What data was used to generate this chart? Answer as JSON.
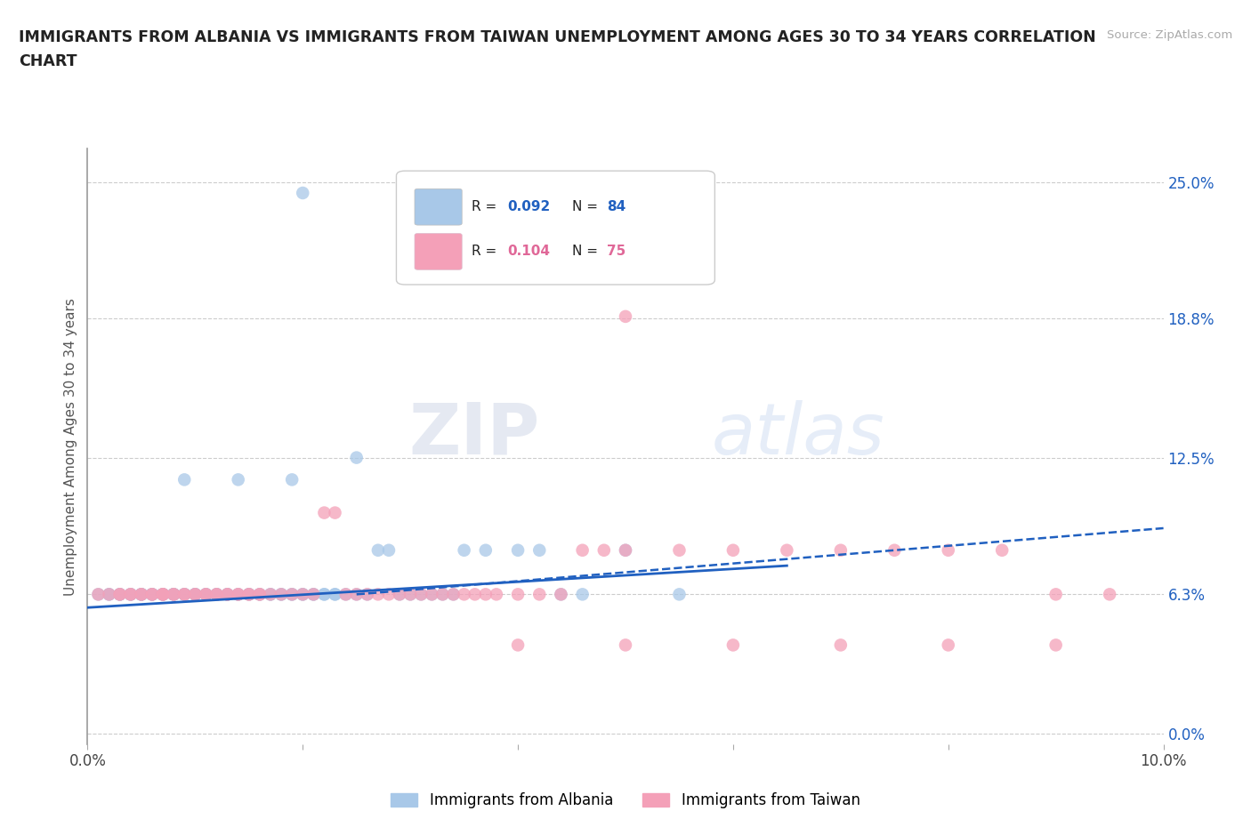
{
  "title_line1": "IMMIGRANTS FROM ALBANIA VS IMMIGRANTS FROM TAIWAN UNEMPLOYMENT AMONG AGES 30 TO 34 YEARS CORRELATION",
  "title_line2": "CHART",
  "source_text": "Source: ZipAtlas.com",
  "ylabel": "Unemployment Among Ages 30 to 34 years",
  "xlim": [
    0.0,
    0.1
  ],
  "ylim": [
    -0.005,
    0.265
  ],
  "albania_R": "0.092",
  "albania_N": "84",
  "taiwan_R": "0.104",
  "taiwan_N": "75",
  "albania_color": "#a8c8e8",
  "taiwan_color": "#f4a0b8",
  "albania_line_color": "#2060c0",
  "taiwan_line_color": "#e06080",
  "legend_albania": "Immigrants from Albania",
  "legend_taiwan": "Immigrants from Taiwan",
  "watermark_zip": "ZIP",
  "watermark_atlas": "atlas",
  "background_color": "#ffffff",
  "y_tick_values": [
    0.0,
    0.063,
    0.125,
    0.188,
    0.25
  ],
  "y_tick_labels": [
    "0.0%",
    "6.3%",
    "12.5%",
    "18.8%",
    "25.0%"
  ],
  "albania_x": [
    0.001,
    0.002,
    0.002,
    0.003,
    0.003,
    0.003,
    0.004,
    0.004,
    0.004,
    0.005,
    0.005,
    0.005,
    0.005,
    0.006,
    0.006,
    0.006,
    0.007,
    0.007,
    0.007,
    0.008,
    0.008,
    0.008,
    0.008,
    0.009,
    0.009,
    0.009,
    0.01,
    0.01,
    0.01,
    0.01,
    0.011,
    0.011,
    0.011,
    0.012,
    0.012,
    0.012,
    0.013,
    0.013,
    0.013,
    0.014,
    0.014,
    0.015,
    0.015,
    0.015,
    0.016,
    0.016,
    0.017,
    0.017,
    0.018,
    0.018,
    0.019,
    0.019,
    0.02,
    0.02,
    0.021,
    0.021,
    0.022,
    0.022,
    0.023,
    0.023,
    0.024,
    0.025,
    0.026,
    0.027,
    0.028,
    0.029,
    0.03,
    0.031,
    0.032,
    0.033,
    0.034,
    0.035,
    0.037,
    0.04,
    0.042,
    0.044,
    0.046,
    0.05,
    0.055,
    0.02,
    0.009,
    0.014,
    0.019,
    0.025
  ],
  "albania_y": [
    0.063,
    0.063,
    0.063,
    0.063,
    0.063,
    0.063,
    0.063,
    0.063,
    0.063,
    0.063,
    0.063,
    0.063,
    0.063,
    0.063,
    0.063,
    0.063,
    0.063,
    0.063,
    0.063,
    0.063,
    0.063,
    0.063,
    0.063,
    0.063,
    0.063,
    0.063,
    0.063,
    0.063,
    0.063,
    0.063,
    0.063,
    0.063,
    0.063,
    0.063,
    0.063,
    0.063,
    0.063,
    0.063,
    0.063,
    0.063,
    0.063,
    0.063,
    0.063,
    0.063,
    0.063,
    0.063,
    0.063,
    0.063,
    0.063,
    0.063,
    0.063,
    0.063,
    0.063,
    0.063,
    0.063,
    0.063,
    0.063,
    0.063,
    0.063,
    0.063,
    0.063,
    0.063,
    0.063,
    0.083,
    0.083,
    0.063,
    0.063,
    0.063,
    0.063,
    0.063,
    0.063,
    0.083,
    0.083,
    0.083,
    0.083,
    0.063,
    0.063,
    0.083,
    0.063,
    0.245,
    0.115,
    0.115,
    0.115,
    0.125
  ],
  "taiwan_x": [
    0.001,
    0.002,
    0.003,
    0.003,
    0.004,
    0.004,
    0.005,
    0.005,
    0.006,
    0.006,
    0.007,
    0.007,
    0.007,
    0.008,
    0.008,
    0.009,
    0.009,
    0.01,
    0.01,
    0.011,
    0.011,
    0.012,
    0.012,
    0.013,
    0.013,
    0.014,
    0.014,
    0.015,
    0.015,
    0.016,
    0.016,
    0.017,
    0.018,
    0.019,
    0.02,
    0.021,
    0.022,
    0.023,
    0.024,
    0.025,
    0.026,
    0.027,
    0.028,
    0.029,
    0.03,
    0.031,
    0.032,
    0.033,
    0.034,
    0.035,
    0.036,
    0.037,
    0.038,
    0.04,
    0.042,
    0.044,
    0.046,
    0.048,
    0.05,
    0.055,
    0.06,
    0.065,
    0.07,
    0.075,
    0.08,
    0.085,
    0.09,
    0.095,
    0.04,
    0.05,
    0.06,
    0.07,
    0.08,
    0.09,
    0.05
  ],
  "taiwan_y": [
    0.063,
    0.063,
    0.063,
    0.063,
    0.063,
    0.063,
    0.063,
    0.063,
    0.063,
    0.063,
    0.063,
    0.063,
    0.063,
    0.063,
    0.063,
    0.063,
    0.063,
    0.063,
    0.063,
    0.063,
    0.063,
    0.063,
    0.063,
    0.063,
    0.063,
    0.063,
    0.063,
    0.063,
    0.063,
    0.063,
    0.063,
    0.063,
    0.063,
    0.063,
    0.063,
    0.063,
    0.1,
    0.1,
    0.063,
    0.063,
    0.063,
    0.063,
    0.063,
    0.063,
    0.063,
    0.063,
    0.063,
    0.063,
    0.063,
    0.063,
    0.063,
    0.063,
    0.063,
    0.063,
    0.063,
    0.063,
    0.083,
    0.083,
    0.083,
    0.083,
    0.083,
    0.083,
    0.083,
    0.083,
    0.083,
    0.083,
    0.063,
    0.063,
    0.04,
    0.04,
    0.04,
    0.04,
    0.04,
    0.04,
    0.189
  ]
}
